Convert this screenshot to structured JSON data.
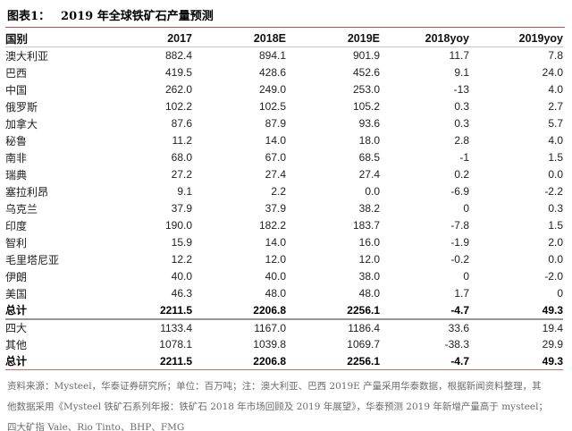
{
  "figure": {
    "label": "图表1：",
    "title": "2019 年全球铁矿石产量预测"
  },
  "table": {
    "columns": [
      "国别",
      "2017",
      "2018E",
      "2019E",
      "2018yoy",
      "2019yoy"
    ],
    "rows": [
      {
        "name": "澳大利亚",
        "values": [
          "882.4",
          "894.1",
          "901.9",
          "11.7",
          "7.8"
        ],
        "bold": false,
        "divider": ""
      },
      {
        "name": "巴西",
        "values": [
          "419.5",
          "428.6",
          "452.6",
          "9.1",
          "24.0"
        ],
        "bold": false,
        "divider": ""
      },
      {
        "name": "中国",
        "values": [
          "262.0",
          "249.0",
          "253.0",
          "-13",
          "4.0"
        ],
        "bold": false,
        "divider": ""
      },
      {
        "name": "俄罗斯",
        "values": [
          "102.2",
          "102.5",
          "105.2",
          "0.3",
          "2.7"
        ],
        "bold": false,
        "divider": ""
      },
      {
        "name": "加拿大",
        "values": [
          "87.6",
          "87.9",
          "93.6",
          "0.3",
          "5.7"
        ],
        "bold": false,
        "divider": ""
      },
      {
        "name": "秘鲁",
        "values": [
          "11.2",
          "14.0",
          "18.0",
          "2.8",
          "4.0"
        ],
        "bold": false,
        "divider": ""
      },
      {
        "name": "南非",
        "values": [
          "68.0",
          "67.0",
          "68.5",
          "-1",
          "1.5"
        ],
        "bold": false,
        "divider": ""
      },
      {
        "name": "瑞典",
        "values": [
          "27.2",
          "27.4",
          "27.4",
          "0.2",
          "0.0"
        ],
        "bold": false,
        "divider": ""
      },
      {
        "name": "塞拉利昂",
        "values": [
          "9.1",
          "2.2",
          "0.0",
          "-6.9",
          "-2.2"
        ],
        "bold": false,
        "divider": ""
      },
      {
        "name": "乌克兰",
        "values": [
          "37.9",
          "37.9",
          "38.2",
          "0",
          "0.3"
        ],
        "bold": false,
        "divider": ""
      },
      {
        "name": "印度",
        "values": [
          "190.0",
          "182.2",
          "183.7",
          "-7.8",
          "1.5"
        ],
        "bold": false,
        "divider": ""
      },
      {
        "name": "智利",
        "values": [
          "15.9",
          "14.0",
          "16.0",
          "-1.9",
          "2.0"
        ],
        "bold": false,
        "divider": ""
      },
      {
        "name": "毛里塔尼亚",
        "values": [
          "12.2",
          "12.0",
          "12.0",
          "-0.2",
          "0.0"
        ],
        "bold": false,
        "divider": ""
      },
      {
        "name": "伊朗",
        "values": [
          "40.0",
          "40.0",
          "38.0",
          "0",
          "-2.0"
        ],
        "bold": false,
        "divider": ""
      },
      {
        "name": "美国",
        "values": [
          "46.3",
          "48.0",
          "48.0",
          "1.7",
          "0"
        ],
        "bold": false,
        "divider": ""
      },
      {
        "name": "总计",
        "values": [
          "2211.5",
          "2206.8",
          "2256.1",
          "-4.7",
          "49.3"
        ],
        "bold": true,
        "divider": "gray"
      },
      {
        "name": "四大",
        "values": [
          "1133.4",
          "1167.0",
          "1186.4",
          "33.6",
          "19.4"
        ],
        "bold": false,
        "divider": ""
      },
      {
        "name": "其他",
        "values": [
          "1078.1",
          "1039.8",
          "1069.7",
          "-38.3",
          "29.9"
        ],
        "bold": false,
        "divider": ""
      },
      {
        "name": "总计",
        "values": [
          "2211.5",
          "2206.8",
          "2256.1",
          "-4.7",
          "49.3"
        ],
        "bold": true,
        "divider": "red"
      }
    ]
  },
  "footnote": {
    "lines": [
      "资料来源：Mysteel，华泰证券研究所；单位：百万吨；注：澳大利亚、巴西 2019E 产量采用华泰数据，根据新闻资料整理，其",
      "他数据采用《Mysteel 铁矿石系列年报：铁矿石 2018 年市场回顾及 2019 年展望》，华泰预测 2019 年新增产量高于 mysteel；",
      "四大矿指 Vale、Rio Tinto、BHP、FMG"
    ]
  },
  "colors": {
    "accent_red_line": "#b2524e",
    "bottom_red_line": "#c9706e",
    "total_divider_gray": "#979797",
    "header_underline": "#c9c9c9",
    "body_text": "#1f1f1f",
    "footnote_text": "#6b6b6b"
  },
  "chart_data": {
    "type": "table",
    "title": "图表1： 2019 年全球铁矿石产量预测",
    "columns": [
      "国别",
      "2017",
      "2018E",
      "2019E",
      "2018yoy",
      "2019yoy"
    ],
    "rows": [
      [
        "澳大利亚",
        882.4,
        894.1,
        901.9,
        11.7,
        7.8
      ],
      [
        "巴西",
        419.5,
        428.6,
        452.6,
        9.1,
        24.0
      ],
      [
        "中国",
        262.0,
        249.0,
        253.0,
        -13,
        4.0
      ],
      [
        "俄罗斯",
        102.2,
        102.5,
        105.2,
        0.3,
        2.7
      ],
      [
        "加拿大",
        87.6,
        87.9,
        93.6,
        0.3,
        5.7
      ],
      [
        "秘鲁",
        11.2,
        14.0,
        18.0,
        2.8,
        4.0
      ],
      [
        "南非",
        68.0,
        67.0,
        68.5,
        -1,
        1.5
      ],
      [
        "瑞典",
        27.2,
        27.4,
        27.4,
        0.2,
        0.0
      ],
      [
        "塞拉利昂",
        9.1,
        2.2,
        0.0,
        -6.9,
        -2.2
      ],
      [
        "乌克兰",
        37.9,
        37.9,
        38.2,
        0,
        0.3
      ],
      [
        "印度",
        190.0,
        182.2,
        183.7,
        -7.8,
        1.5
      ],
      [
        "智利",
        15.9,
        14.0,
        16.0,
        -1.9,
        2.0
      ],
      [
        "毛里塔尼亚",
        12.2,
        12.0,
        12.0,
        -0.2,
        0.0
      ],
      [
        "伊朗",
        40.0,
        40.0,
        38.0,
        0,
        -2.0
      ],
      [
        "美国",
        46.3,
        48.0,
        48.0,
        1.7,
        0
      ],
      [
        "总计",
        2211.5,
        2206.8,
        2256.1,
        -4.7,
        49.3
      ],
      [
        "四大",
        1133.4,
        1167.0,
        1186.4,
        33.6,
        19.4
      ],
      [
        "其他",
        1078.1,
        1039.8,
        1069.7,
        -38.3,
        29.9
      ],
      [
        "总计",
        2211.5,
        2206.8,
        2256.1,
        -4.7,
        49.3
      ]
    ],
    "unit": "百万吨",
    "source": "Mysteel，华泰证券研究所"
  }
}
